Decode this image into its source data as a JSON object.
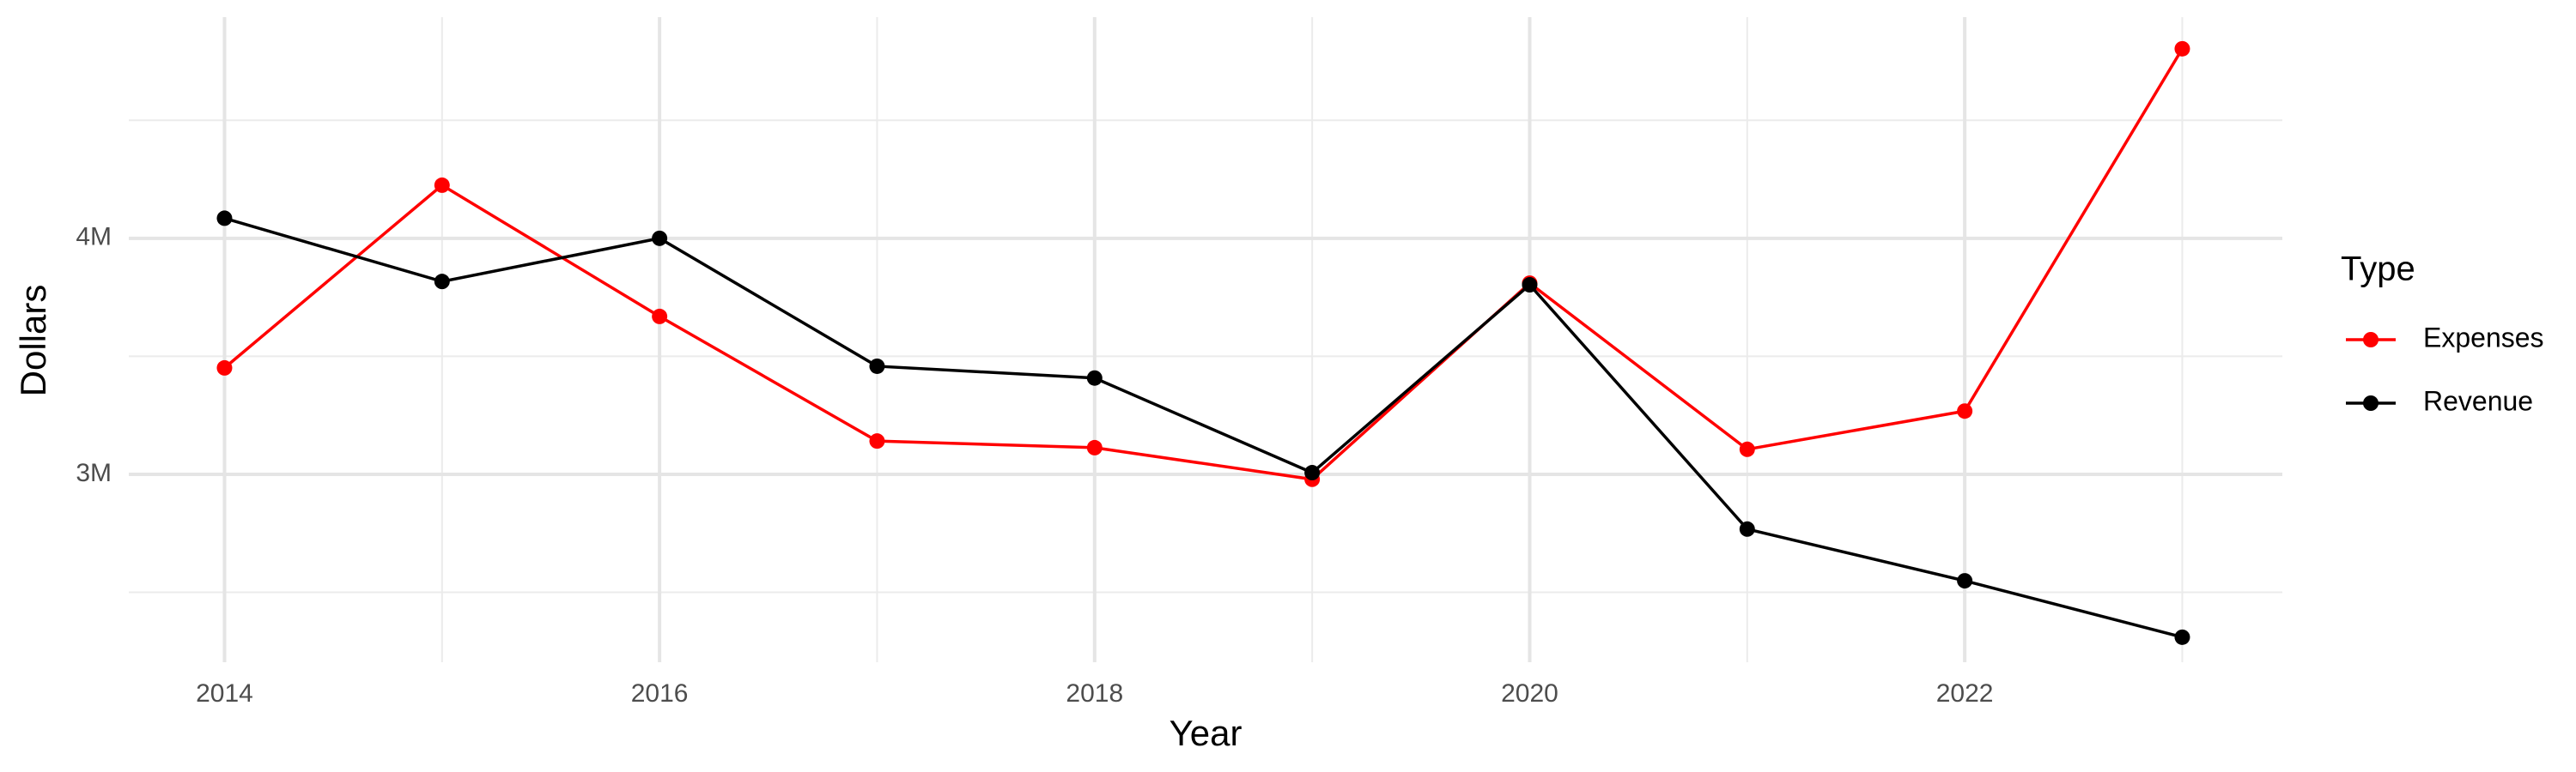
{
  "chart_data": {
    "type": "line",
    "x_label": "Year",
    "y_label": "Dollars",
    "legend_title": "Type",
    "legend_position": "right",
    "grid": true,
    "x": [
      2014,
      2015,
      2016,
      2017,
      2018,
      2019,
      2020,
      2021,
      2022,
      2023
    ],
    "xlim": [
      2013.56,
      2023.46
    ],
    "xticks": [
      2014,
      2016,
      2018,
      2020,
      2022
    ],
    "xminor_ticks": [
      2015,
      2017,
      2019,
      2021,
      2023
    ],
    "ylim": [
      2204000,
      4937000
    ],
    "yticks": [
      {
        "value": 3000000,
        "label": "3M"
      },
      {
        "value": 4000000,
        "label": "4M"
      }
    ],
    "yminor_ticks": [
      2500000,
      3500000,
      4500000
    ],
    "series": [
      {
        "name": "Expenses",
        "color": "#ff0000",
        "values": [
          3451000,
          4225000,
          3669000,
          3141000,
          3113000,
          2979000,
          3810000,
          3106000,
          3268000,
          4803000
        ]
      },
      {
        "name": "Revenue",
        "color": "#000000",
        "values": [
          4085000,
          3817000,
          4000000,
          3458000,
          3408000,
          3007000,
          3803000,
          2768000,
          2549000,
          2310000
        ]
      }
    ]
  }
}
